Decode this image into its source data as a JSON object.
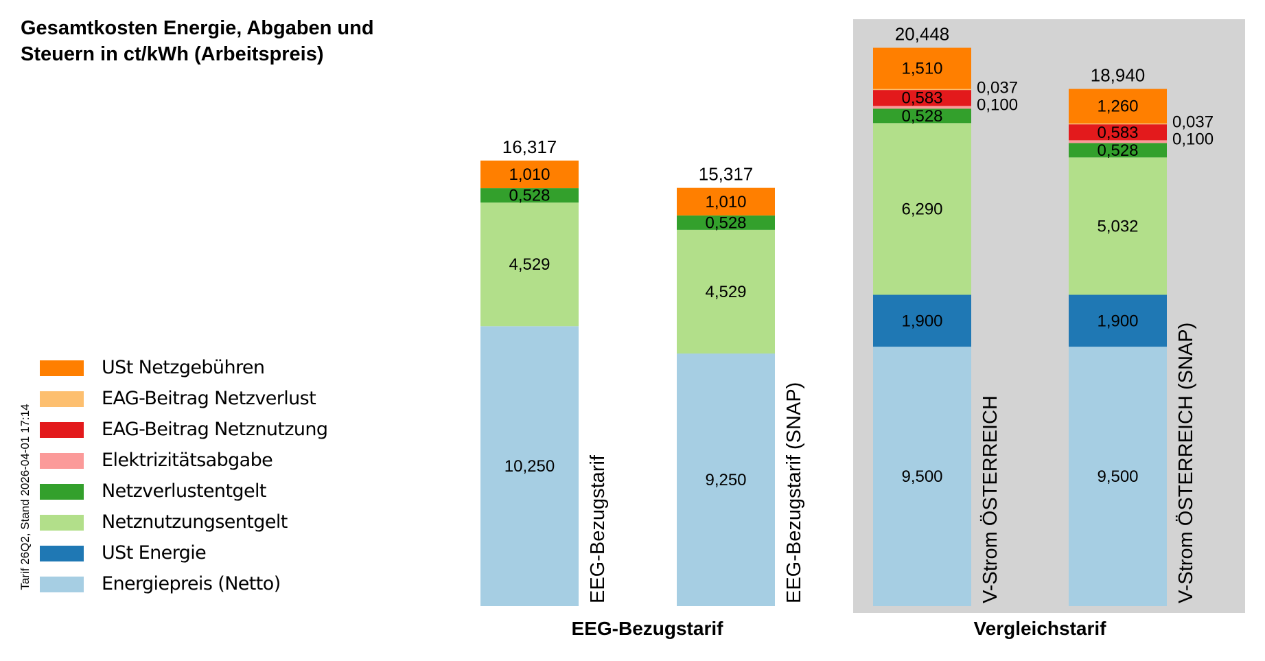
{
  "title": "Gesamtkosten Energie, Abgaben und Steuern in ct/kWh (Arbeitspreis)",
  "footnote": "Tarif 26Q2, Stand 2026-04-01 17:14",
  "legend": [
    {
      "label": "USt Netzgebühren",
      "color": "#FF7F00"
    },
    {
      "label": "EAG-Beitrag Netzverlust",
      "color": "#FDBF6F"
    },
    {
      "label": "EAG-Beitrag Netznutzung",
      "color": "#E31A1C"
    },
    {
      "label": "Elektrizitätsabgabe",
      "color": "#FB9A99"
    },
    {
      "label": "Netzverlustentgelt",
      "color": "#33A02C"
    },
    {
      "label": "Netznutzungsentgelt",
      "color": "#B2DF8A"
    },
    {
      "label": "USt Energie",
      "color": "#1F78B4"
    },
    {
      "label": "Energiepreis (Netto)",
      "color": "#A6CEE3"
    }
  ],
  "chart_data": {
    "type": "bar",
    "stacked": true,
    "title": "Gesamtkosten Energie, Abgaben und Steuern in ct/kWh (Arbeitspreis)",
    "xlabel": "",
    "ylabel": "ct/kWh",
    "ylim": [
      0,
      20.448
    ],
    "grid": false,
    "legend_position": "left",
    "categories": [
      "EEG-Bezugstarif",
      "EEG-Bezugstarif (SNAP)",
      "V-Strom ÖSTERREICH",
      "V-Strom ÖSTERREICH (SNAP)"
    ],
    "groups": [
      {
        "label": "EEG-Bezugstarif",
        "categories": [
          0,
          1
        ],
        "highlighted": false
      },
      {
        "label": "Vergleichstarif",
        "categories": [
          2,
          3
        ],
        "highlighted": true,
        "background": "#D3D3D3"
      }
    ],
    "series": [
      {
        "name": "Energiepreis (Netto)",
        "color": "#A6CEE3",
        "values": [
          10.25,
          9.25,
          9.5,
          9.5
        ],
        "labels": [
          "10,250",
          "9,250",
          "9,500",
          "9,500"
        ]
      },
      {
        "name": "USt Energie",
        "color": "#1F78B4",
        "values": [
          0,
          0,
          1.9,
          1.9
        ],
        "labels": [
          "",
          "",
          "1,900",
          "1,900"
        ]
      },
      {
        "name": "Netznutzungsentgelt",
        "color": "#B2DF8A",
        "values": [
          4.529,
          4.529,
          6.29,
          5.032
        ],
        "labels": [
          "4,529",
          "4,529",
          "6,290",
          "5,032"
        ]
      },
      {
        "name": "Netzverlustentgelt",
        "color": "#33A02C",
        "values": [
          0.528,
          0.528,
          0.528,
          0.528
        ],
        "labels": [
          "0,528",
          "0,528",
          "0,528",
          "0,528"
        ]
      },
      {
        "name": "Elektrizitätsabgabe",
        "color": "#FB9A99",
        "values": [
          0,
          0,
          0.1,
          0.1
        ],
        "labels": [
          "",
          "",
          "0,100",
          "0,100"
        ],
        "label_outside": true
      },
      {
        "name": "EAG-Beitrag Netznutzung",
        "color": "#E31A1C",
        "values": [
          0,
          0,
          0.583,
          0.583
        ],
        "labels": [
          "",
          "",
          "0,583",
          "0,583"
        ]
      },
      {
        "name": "EAG-Beitrag Netzverlust",
        "color": "#FDBF6F",
        "values": [
          0,
          0,
          0.037,
          0.037
        ],
        "labels": [
          "",
          "",
          "0,037",
          "0,037"
        ],
        "label_outside": true
      },
      {
        "name": "USt Netzgebühren",
        "color": "#FF7F00",
        "values": [
          1.01,
          1.01,
          1.51,
          1.26
        ],
        "labels": [
          "1,010",
          "1,010",
          "1,510",
          "1,260"
        ]
      }
    ],
    "totals": [
      16.317,
      15.317,
      20.448,
      18.94
    ],
    "total_labels": [
      "16,317",
      "15,317",
      "20,448",
      "18,940"
    ]
  }
}
